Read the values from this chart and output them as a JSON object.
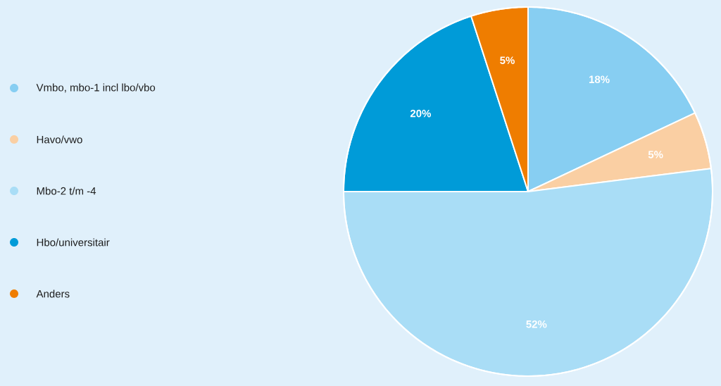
{
  "chart_data": {
    "type": "pie",
    "categories": [
      "Vmbo, mbo-1 incl lbo/vbo",
      "Havo/vwo",
      "Mbo-2 t/m -4",
      "Hbo/universitair",
      "Anders"
    ],
    "values": [
      18,
      5,
      52,
      20,
      5
    ],
    "colors": [
      "#87cef2",
      "#facfa3",
      "#a9ddf6",
      "#009bd8",
      "#ef7d00"
    ],
    "value_labels": [
      "18%",
      "5%",
      "52%",
      "20%",
      "5%"
    ],
    "legend": "left"
  }
}
